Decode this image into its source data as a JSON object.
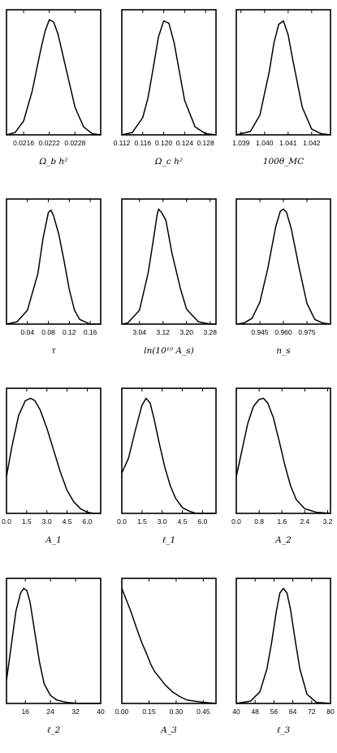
{
  "chart_data": [
    {
      "type": "line",
      "xlabel": "Ω_b h²",
      "xlim": [
        0.0212,
        0.0234
      ],
      "ticks": [
        "0.0216",
        "0.0222",
        "0.0228"
      ],
      "tickvals": [
        0.0216,
        0.0222,
        0.0228
      ],
      "x": [
        0.0212,
        0.0214,
        0.0216,
        0.0218,
        0.022,
        0.0221,
        0.0222,
        0.0223,
        0.0224,
        0.0226,
        0.0228,
        0.023,
        0.0232,
        0.0234
      ],
      "y": [
        0.0,
        0.02,
        0.12,
        0.38,
        0.74,
        0.9,
        1.0,
        0.98,
        0.88,
        0.56,
        0.24,
        0.07,
        0.01,
        0.0
      ]
    },
    {
      "type": "line",
      "xlabel": "Ω_c h²",
      "xlim": [
        0.112,
        0.13
      ],
      "ticks": [
        "0.112",
        "0.116",
        "0.120",
        "0.124",
        "0.128"
      ],
      "tickvals": [
        0.112,
        0.116,
        0.12,
        0.124,
        0.128
      ],
      "x": [
        0.112,
        0.114,
        0.116,
        0.117,
        0.118,
        0.119,
        0.12,
        0.121,
        0.122,
        0.123,
        0.124,
        0.126,
        0.128,
        0.13
      ],
      "y": [
        0.0,
        0.02,
        0.15,
        0.32,
        0.58,
        0.85,
        0.99,
        0.97,
        0.8,
        0.55,
        0.3,
        0.07,
        0.01,
        0.0
      ]
    },
    {
      "type": "line",
      "xlabel": "100θ_MC",
      "xlim": [
        1.0388,
        1.0428
      ],
      "ticks": [
        "1.039",
        "1.040",
        "1.041",
        "1.042"
      ],
      "tickvals": [
        1.039,
        1.04,
        1.041,
        1.042
      ],
      "x": [
        1.0388,
        1.0394,
        1.0398,
        1.0402,
        1.0404,
        1.0406,
        1.0408,
        1.041,
        1.0412,
        1.0416,
        1.042,
        1.0424,
        1.0428
      ],
      "y": [
        0.0,
        0.03,
        0.17,
        0.55,
        0.8,
        0.96,
        0.99,
        0.87,
        0.65,
        0.24,
        0.05,
        0.01,
        0.0
      ]
    },
    {
      "type": "line",
      "xlabel": "τ",
      "xlim": [
        0.0,
        0.18
      ],
      "ticks": [
        "0.04",
        "0.08",
        "0.12",
        "0.16"
      ],
      "tickvals": [
        0.04,
        0.08,
        0.12,
        0.16
      ],
      "x": [
        0.0,
        0.02,
        0.04,
        0.06,
        0.07,
        0.08,
        0.085,
        0.09,
        0.1,
        0.11,
        0.12,
        0.13,
        0.14,
        0.16,
        0.18
      ],
      "y": [
        0.0,
        0.02,
        0.12,
        0.44,
        0.75,
        0.97,
        0.99,
        0.94,
        0.78,
        0.55,
        0.3,
        0.12,
        0.04,
        0.0,
        0.0
      ]
    },
    {
      "type": "line",
      "xlabel": "ln(10¹⁰ A_s)",
      "xlim": [
        2.98,
        3.3
      ],
      "ticks": [
        "3.04",
        "3.12",
        "3.20",
        "3.28"
      ],
      "tickvals": [
        3.04,
        3.12,
        3.2,
        3.28
      ],
      "x": [
        2.98,
        3.0,
        3.04,
        3.07,
        3.09,
        3.1,
        3.105,
        3.115,
        3.13,
        3.15,
        3.18,
        3.2,
        3.24,
        3.28,
        3.3
      ],
      "y": [
        0.0,
        0.01,
        0.12,
        0.45,
        0.78,
        0.95,
        1.0,
        0.97,
        0.9,
        0.62,
        0.3,
        0.13,
        0.02,
        0.0,
        0.0
      ]
    },
    {
      "type": "line",
      "xlabel": "n_s",
      "xlim": [
        0.93,
        0.99
      ],
      "ticks": [
        "0.945",
        "0.960",
        "0.975"
      ],
      "tickvals": [
        0.945,
        0.96,
        0.975
      ],
      "x": [
        0.93,
        0.935,
        0.94,
        0.945,
        0.95,
        0.955,
        0.958,
        0.96,
        0.962,
        0.965,
        0.97,
        0.975,
        0.98,
        0.985,
        0.99
      ],
      "y": [
        0.0,
        0.01,
        0.05,
        0.19,
        0.48,
        0.84,
        0.98,
        1.0,
        0.97,
        0.83,
        0.49,
        0.18,
        0.04,
        0.01,
        0.0
      ]
    },
    {
      "type": "line",
      "xlabel": "A_1",
      "xlim": [
        0.0,
        7.0
      ],
      "ticks": [
        "0.0",
        "1.5",
        "3.0",
        "4.5",
        "6.0"
      ],
      "tickvals": [
        0,
        1.5,
        3,
        4.5,
        6
      ],
      "x": [
        0.0,
        0.4,
        0.9,
        1.4,
        1.8,
        2.1,
        2.5,
        3.0,
        3.5,
        4.0,
        4.5,
        5.0,
        5.5,
        6.0,
        6.5,
        7.0
      ],
      "y": [
        0.32,
        0.58,
        0.85,
        0.98,
        1.0,
        0.98,
        0.9,
        0.74,
        0.55,
        0.36,
        0.2,
        0.1,
        0.04,
        0.01,
        0.0,
        0.0
      ]
    },
    {
      "type": "line",
      "xlabel": "ℓ_1",
      "xlim": [
        0.0,
        7.0
      ],
      "ticks": [
        "0.0",
        "1.5",
        "3.0",
        "4.5",
        "6.0"
      ],
      "tickvals": [
        0,
        1.5,
        3,
        4.5,
        6
      ],
      "x": [
        0.0,
        0.5,
        1.0,
        1.5,
        1.8,
        2.1,
        2.4,
        2.8,
        3.2,
        3.6,
        4.0,
        4.5,
        5.0,
        5.5,
        6.0,
        7.0
      ],
      "y": [
        0.35,
        0.48,
        0.72,
        0.94,
        1.0,
        0.96,
        0.82,
        0.6,
        0.4,
        0.24,
        0.13,
        0.05,
        0.02,
        0.0,
        0.0,
        0.0
      ]
    },
    {
      "type": "line",
      "xlabel": "A_2",
      "xlim": [
        0.0,
        3.3
      ],
      "ticks": [
        "0.0",
        "0.8",
        "1.6",
        "2.4",
        "3.2"
      ],
      "tickvals": [
        0,
        0.8,
        1.6,
        2.4,
        3.2
      ],
      "x": [
        0.0,
        0.2,
        0.4,
        0.6,
        0.8,
        0.95,
        1.1,
        1.3,
        1.5,
        1.7,
        1.9,
        2.1,
        2.4,
        2.8,
        3.3
      ],
      "y": [
        0.32,
        0.55,
        0.78,
        0.93,
        0.99,
        1.0,
        0.96,
        0.83,
        0.63,
        0.42,
        0.24,
        0.12,
        0.04,
        0.01,
        0.0
      ]
    },
    {
      "type": "line",
      "xlabel": "ℓ_2",
      "xlim": [
        10.0,
        40.0
      ],
      "ticks": [
        "16",
        "24",
        "32",
        "40"
      ],
      "tickvals": [
        16,
        24,
        32,
        40
      ],
      "x": [
        10.0,
        11.5,
        13.0,
        14.5,
        15.5,
        16.5,
        17.5,
        19.0,
        20.5,
        22.0,
        24.0,
        26.0,
        29.0,
        33.0,
        40.0
      ],
      "y": [
        0.2,
        0.5,
        0.8,
        0.96,
        1.0,
        0.98,
        0.88,
        0.62,
        0.36,
        0.17,
        0.07,
        0.03,
        0.01,
        0.0,
        0.0
      ]
    },
    {
      "type": "line",
      "xlabel": "A_3",
      "xlim": [
        0.0,
        0.52
      ],
      "ticks": [
        "0.00",
        "0.15",
        "0.30",
        "0.45"
      ],
      "tickvals": [
        0,
        0.15,
        0.3,
        0.45
      ],
      "x": [
        0.0,
        0.02,
        0.05,
        0.08,
        0.11,
        0.14,
        0.16,
        0.18,
        0.21,
        0.24,
        0.28,
        0.32,
        0.36,
        0.4,
        0.45,
        0.52
      ],
      "y": [
        1.0,
        0.92,
        0.8,
        0.66,
        0.53,
        0.42,
        0.34,
        0.28,
        0.22,
        0.16,
        0.1,
        0.06,
        0.03,
        0.02,
        0.01,
        0.0
      ]
    },
    {
      "type": "line",
      "xlabel": "ℓ_3",
      "xlim": [
        40.0,
        80.0
      ],
      "ticks": [
        "40",
        "48",
        "56",
        "64",
        "72",
        "80"
      ],
      "tickvals": [
        40,
        48,
        56,
        64,
        72,
        80
      ],
      "x": [
        40.0,
        46.0,
        50.0,
        53.0,
        55.0,
        57.0,
        58.5,
        60.0,
        61.5,
        63.0,
        65.0,
        67.0,
        70.0,
        74.0,
        80.0
      ],
      "y": [
        0.0,
        0.02,
        0.1,
        0.3,
        0.53,
        0.8,
        0.96,
        1.0,
        0.96,
        0.82,
        0.55,
        0.3,
        0.08,
        0.01,
        0.0
      ]
    }
  ]
}
